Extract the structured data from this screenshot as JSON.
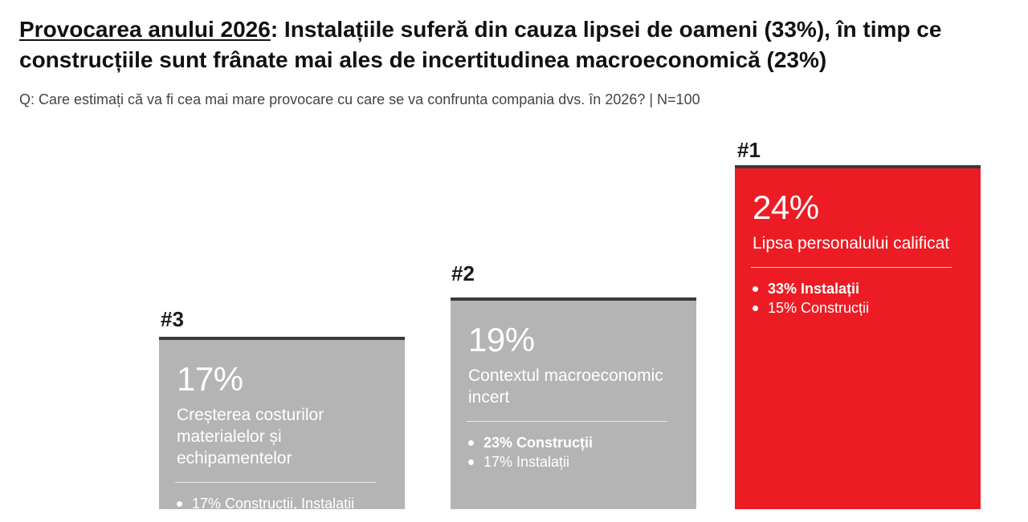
{
  "header": {
    "title_lead": "Provocarea anului 2026",
    "title_rest": ": Instalațiile suferă din cauza lipsei de oameni (33%), în timp ce construcțiile sunt frânate mai ales de incertitudinea macroeconomică (23%)",
    "question": "Q: Care estimați că va fi cea mai mare provocare cu care se va confrunta compania dvs. în 2026? | N=100"
  },
  "colors": {
    "accent": "#ed1c24",
    "card_grey": "#b4b4b4",
    "card_top_border": "#3a3a3a"
  },
  "chart_data": {
    "type": "bar",
    "title": "",
    "categories": [
      "Creșterea costurilor materialelor și echipamentelor",
      "Contextul macroeconomic incert",
      "Lipsa personalului calificat"
    ],
    "values": [
      17,
      19,
      24
    ],
    "unit": "%",
    "ranks": [
      "#3",
      "#2",
      "#1"
    ],
    "value_labels": [
      "17%",
      "19%",
      "24%"
    ],
    "highlight": "Lipsa personalului calificat",
    "breakdowns": [
      [
        {
          "text": "17% Construcții, Instalații",
          "bold": false
        }
      ],
      [
        {
          "text": "23% Construcții",
          "bold": true
        },
        {
          "text": "17% Instalații",
          "bold": false
        }
      ],
      [
        {
          "text": "33% Instalații",
          "bold": true
        },
        {
          "text": "15% Construcții",
          "bold": false
        }
      ]
    ]
  }
}
